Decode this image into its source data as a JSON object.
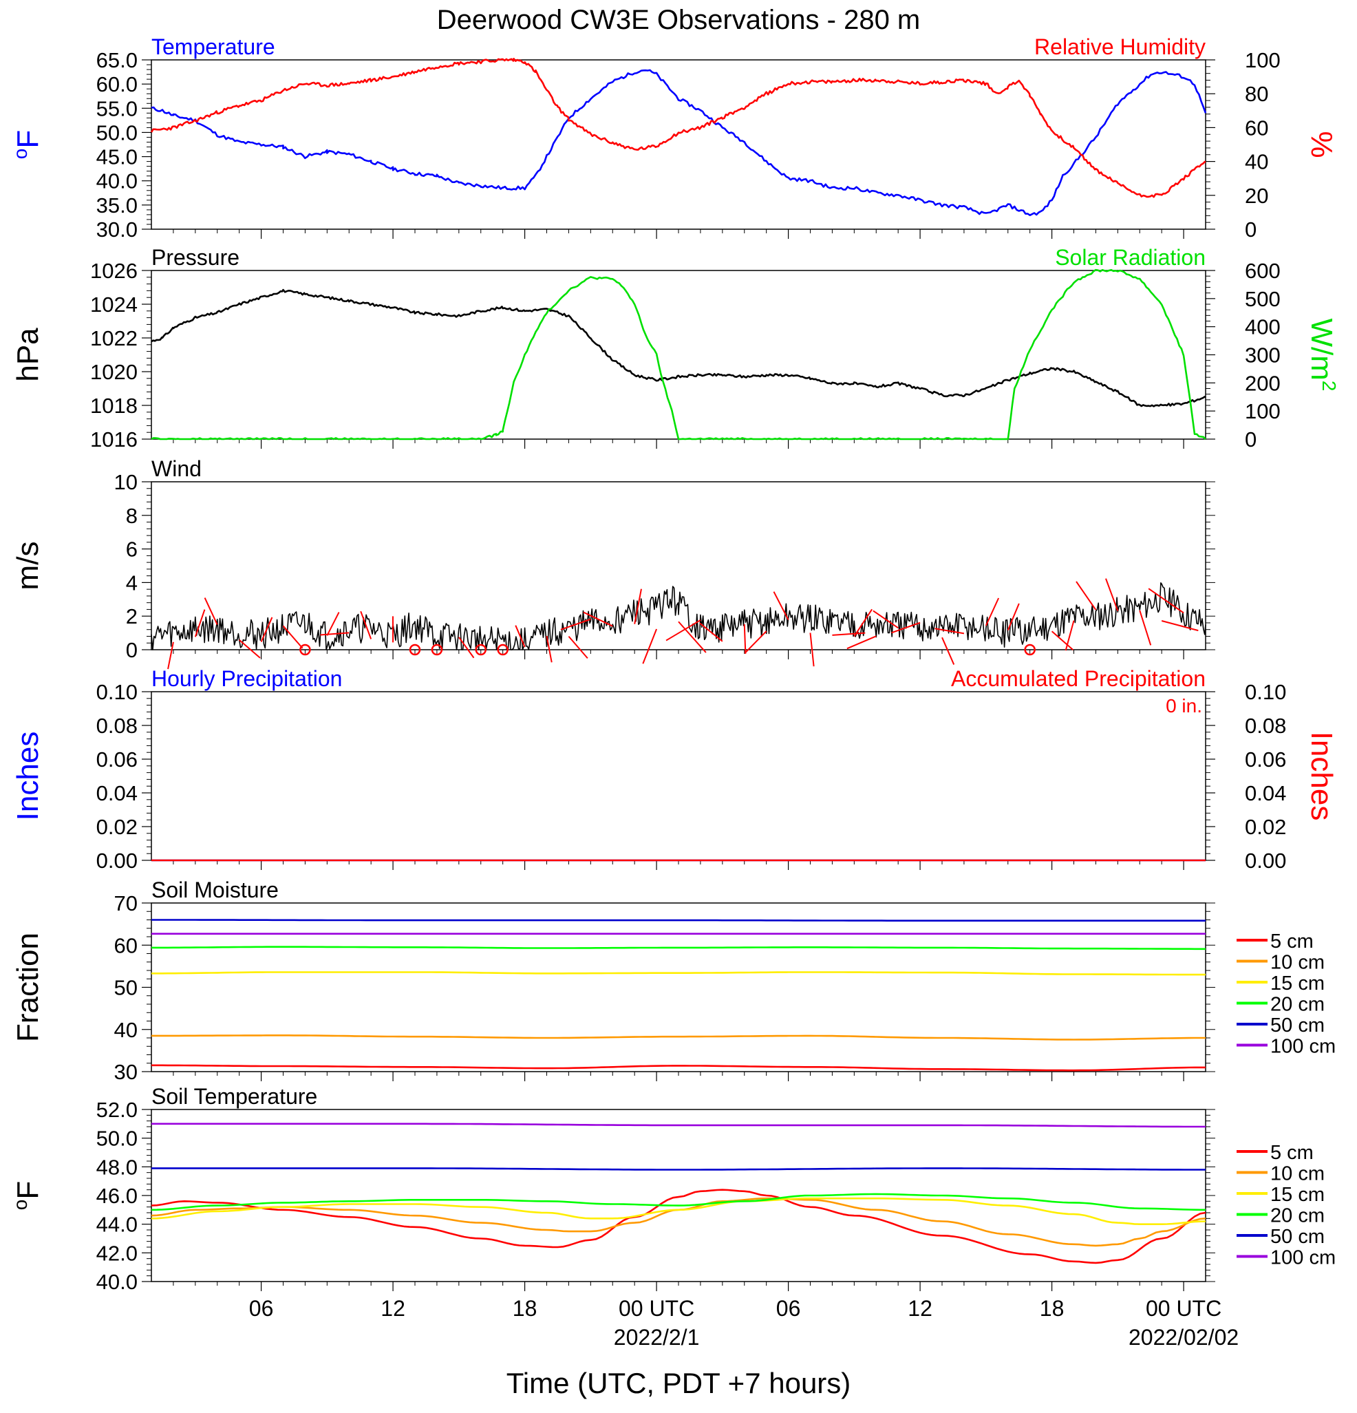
{
  "colors": {
    "blue": "#0000ff",
    "red": "#ff0000",
    "green": "#00e000",
    "black": "#000000",
    "orange": "#ff9900",
    "yellow": "#ffee00",
    "purple": "#9900dd",
    "soil_green": "#00ff00",
    "soil_blue": "#0000cc"
  },
  "chart_data": [
    {
      "type": "line",
      "title": "Deerwood CW3E Observations - 280 m",
      "panel": "Temperature / Relative Humidity",
      "left_label": "Temperature",
      "right_label": "Relative Humidity",
      "ylabel_left": "oF",
      "ylabel_right": "%",
      "ylim_left": [
        30,
        65
      ],
      "ylim_right": [
        0,
        100
      ],
      "yticks_left": [
        "30.0",
        "35.0",
        "40.0",
        "45.0",
        "50.0",
        "55.0",
        "60.0",
        "65.0"
      ],
      "yticks_right": [
        "0",
        "20",
        "40",
        "60",
        "80",
        "100"
      ],
      "x_range_hours": [
        0,
        48
      ],
      "series": [
        {
          "name": "Temperature",
          "axis": "left",
          "color": "blue",
          "x": [
            0,
            0.5,
            1,
            1.5,
            2,
            2.5,
            3,
            4,
            5,
            6,
            7,
            8,
            9,
            10,
            11,
            12,
            13,
            14,
            15,
            16,
            17,
            17.5,
            18,
            18.5,
            19,
            20,
            21,
            22,
            22.5,
            23,
            24,
            25,
            26,
            27,
            28,
            29,
            30,
            31,
            32,
            33,
            34,
            35,
            36,
            37,
            38,
            39,
            40,
            40.5,
            41,
            41.5,
            42,
            43,
            44,
            45,
            45.5,
            46,
            47,
            47.5,
            48
          ],
          "values": [
            55,
            54.5,
            53.5,
            53,
            52.5,
            51,
            49.5,
            48,
            47.5,
            47,
            45,
            46,
            45.5,
            44,
            42.5,
            41.5,
            41,
            39.5,
            39,
            38.5,
            38.5,
            41,
            45,
            49,
            53,
            57,
            60.5,
            62.5,
            63,
            62,
            57,
            54.5,
            51,
            48,
            44,
            40.5,
            40,
            38.5,
            38.5,
            37.5,
            37,
            36,
            35,
            34.5,
            33,
            35,
            33,
            33.5,
            36,
            41,
            43.5,
            49,
            56,
            60,
            62,
            62.5,
            61.5,
            60,
            54
          ]
        },
        {
          "name": "Relative Humidity",
          "axis": "right",
          "color": "red",
          "x": [
            0,
            1,
            2,
            3,
            4,
            5,
            6,
            7,
            8,
            9,
            10,
            11,
            12,
            13,
            14,
            15,
            16,
            16.5,
            17,
            17.5,
            18,
            18.5,
            19,
            20,
            21,
            22,
            23,
            24,
            25,
            26,
            27,
            28,
            29,
            30,
            31,
            32,
            33,
            34,
            35,
            36,
            37,
            38,
            38.5,
            39,
            39.5,
            40,
            40.5,
            41,
            42,
            43,
            44,
            45,
            46,
            47,
            48
          ],
          "values": [
            58,
            60,
            64,
            69,
            73,
            76,
            82,
            86,
            85,
            86,
            88,
            90,
            93,
            96,
            98,
            99,
            100,
            100,
            99,
            93,
            82,
            72,
            65,
            56,
            51,
            47,
            49,
            57,
            60,
            66,
            72,
            80,
            86,
            87,
            87,
            88,
            88,
            87,
            86,
            87,
            88,
            86,
            80,
            84,
            88,
            79,
            68,
            58,
            48,
            35,
            27,
            20,
            20,
            30,
            40
          ]
        }
      ]
    },
    {
      "type": "line",
      "panel": "Pressure / Solar Radiation",
      "left_label": "Pressure",
      "right_label": "Solar Radiation",
      "ylabel_left": "hPa",
      "ylabel_right": "W/m2",
      "ylim_left": [
        1016,
        1026
      ],
      "ylim_right": [
        0,
        600
      ],
      "yticks_left": [
        "1016",
        "1018",
        "1020",
        "1022",
        "1024",
        "1026"
      ],
      "yticks_right": [
        "0",
        "100",
        "200",
        "300",
        "400",
        "500",
        "600"
      ],
      "series": [
        {
          "name": "Pressure",
          "axis": "left",
          "color": "black",
          "x": [
            0,
            0.5,
            1,
            2,
            3,
            4,
            5,
            6,
            7,
            8,
            9,
            10,
            11,
            12,
            13,
            14,
            15,
            16,
            17,
            18,
            19,
            20,
            21,
            22,
            23,
            24,
            25,
            26,
            27,
            28,
            29,
            30,
            31,
            32,
            33,
            34,
            35,
            36,
            37,
            38,
            39,
            40,
            41,
            42,
            43,
            44,
            45,
            46,
            47,
            48
          ],
          "values": [
            1021.8,
            1022,
            1022.6,
            1023.2,
            1023.5,
            1024,
            1024.4,
            1024.8,
            1024.6,
            1024.4,
            1024.2,
            1024,
            1023.8,
            1023.5,
            1023.4,
            1023.3,
            1023.6,
            1023.8,
            1023.6,
            1023.7,
            1023.3,
            1022,
            1020.7,
            1019.8,
            1019.5,
            1019.7,
            1019.8,
            1019.8,
            1019.7,
            1019.8,
            1019.8,
            1019.6,
            1019.3,
            1019.3,
            1019.1,
            1019.3,
            1019.0,
            1018.6,
            1018.6,
            1019.0,
            1019.5,
            1019.9,
            1020.2,
            1020.0,
            1019.4,
            1018.8,
            1018.0,
            1018.0,
            1018.1,
            1018.5
          ]
        },
        {
          "name": "Solar Radiation",
          "axis": "right",
          "color": "green",
          "x": [
            0,
            15,
            15.7,
            16,
            16.5,
            17,
            17.5,
            18,
            19,
            20,
            21,
            21.5,
            22,
            22.5,
            23,
            23.3,
            23.7,
            24,
            25,
            26,
            38,
            39,
            39.3,
            40,
            41,
            42,
            43,
            44,
            45,
            46,
            47,
            47.5,
            48
          ],
          "values": [
            0,
            0,
            15,
            30,
            200,
            300,
            380,
            450,
            530,
            575,
            570,
            540,
            480,
            370,
            300,
            200,
            100,
            0,
            0,
            0,
            0,
            0,
            180,
            320,
            460,
            560,
            600,
            600,
            570,
            480,
            300,
            20,
            0
          ]
        }
      ]
    },
    {
      "type": "line",
      "panel": "Wind",
      "left_label": "Wind",
      "ylabel_left": "m/s",
      "ylim_left": [
        0,
        10
      ],
      "yticks_left": [
        "0",
        "2",
        "4",
        "6",
        "8",
        "10"
      ],
      "series": [
        {
          "name": "Wind",
          "axis": "left",
          "color": "black",
          "x": [
            0,
            1,
            2,
            3,
            4,
            5,
            6,
            7,
            8,
            9,
            10,
            11,
            12,
            13,
            14,
            15,
            16,
            17,
            18,
            19,
            20,
            21,
            22,
            23,
            23.5,
            24,
            25,
            26,
            27,
            28,
            29,
            30,
            31,
            32,
            33,
            34,
            35,
            36,
            37,
            38,
            39,
            40,
            41,
            42,
            43,
            44,
            45,
            46,
            47,
            48
          ],
          "values": [
            0.8,
            1.0,
            1.2,
            1.3,
            1.0,
            0.9,
            1.3,
            1.6,
            0.8,
            1.2,
            1.3,
            0.8,
            1.5,
            0.8,
            0.7,
            0.6,
            0.5,
            0.4,
            0.9,
            1.2,
            1.6,
            1.7,
            2.2,
            2.4,
            3.0,
            2.8,
            1.2,
            1.3,
            1.5,
            1.6,
            1.9,
            1.8,
            1.7,
            1.6,
            1.4,
            1.4,
            1.3,
            1.3,
            1.4,
            1.2,
            1.0,
            1.1,
            1.5,
            2.0,
            2.0,
            2.3,
            2.5,
            3.2,
            2.2,
            1.5
          ]
        }
      ]
    },
    {
      "type": "line",
      "panel": "Precipitation",
      "left_label": "Hourly Precipitation",
      "right_label": "Accumulated Precipitation",
      "accum_text": "0 in.",
      "ylabel_left": "Inches",
      "ylabel_right": "Inches",
      "ylim_left": [
        0,
        0.1
      ],
      "ylim_right": [
        0,
        0.1
      ],
      "yticks_left": [
        "0.00",
        "0.02",
        "0.04",
        "0.06",
        "0.08",
        "0.10"
      ],
      "yticks_right": [
        "0.00",
        "0.02",
        "0.04",
        "0.06",
        "0.08",
        "0.10"
      ],
      "series": [
        {
          "name": "Hourly Precipitation",
          "axis": "left",
          "color": "blue",
          "x": [
            0,
            48
          ],
          "values": [
            0,
            0
          ]
        },
        {
          "name": "Accumulated Precipitation",
          "axis": "right",
          "color": "red",
          "x": [
            0,
            48
          ],
          "values": [
            0,
            0
          ]
        }
      ]
    },
    {
      "type": "line",
      "panel": "Soil Moisture",
      "left_label": "Soil Moisture",
      "ylabel_left": "Fraction",
      "ylim_left": [
        30,
        70
      ],
      "yticks_left": [
        "30",
        "40",
        "50",
        "60",
        "70"
      ],
      "series": [
        {
          "name": "5 cm",
          "color": "red",
          "x": [
            0,
            6,
            12,
            18,
            24,
            30,
            36,
            42,
            48
          ],
          "values": [
            31.5,
            31.3,
            31.1,
            30.8,
            31.4,
            31.1,
            30.6,
            30.3,
            31.0
          ]
        },
        {
          "name": "10 cm",
          "color": "orange",
          "x": [
            0,
            6,
            12,
            18,
            24,
            30,
            36,
            42,
            48
          ],
          "values": [
            38.5,
            38.6,
            38.3,
            38.0,
            38.3,
            38.5,
            38.0,
            37.6,
            38.0
          ]
        },
        {
          "name": "15 cm",
          "color": "yellow",
          "x": [
            0,
            6,
            12,
            18,
            24,
            30,
            36,
            42,
            48
          ],
          "values": [
            53.3,
            53.6,
            53.6,
            53.3,
            53.4,
            53.6,
            53.5,
            53.1,
            53.0
          ]
        },
        {
          "name": "20 cm",
          "color": "soil_green",
          "x": [
            0,
            6,
            12,
            18,
            24,
            30,
            36,
            42,
            48
          ],
          "values": [
            59.4,
            59.6,
            59.5,
            59.3,
            59.4,
            59.5,
            59.4,
            59.2,
            59.1
          ]
        },
        {
          "name": "50 cm",
          "color": "soil_blue",
          "x": [
            0,
            12,
            24,
            36,
            48
          ],
          "values": [
            66.0,
            65.9,
            65.9,
            65.8,
            65.8
          ]
        },
        {
          "name": "100 cm",
          "color": "purple",
          "x": [
            0,
            12,
            24,
            36,
            48
          ],
          "values": [
            62.7,
            62.7,
            62.7,
            62.7,
            62.7
          ]
        }
      ]
    },
    {
      "type": "line",
      "panel": "Soil Temperature",
      "left_label": "Soil Temperature",
      "ylabel_left": "oF",
      "ylim_left": [
        40,
        52
      ],
      "yticks_left": [
        "40.0",
        "42.0",
        "44.0",
        "46.0",
        "48.0",
        "50.0",
        "52.0"
      ],
      "series": [
        {
          "name": "5 cm",
          "color": "red",
          "x": [
            0,
            1.5,
            3,
            6,
            9,
            12,
            15,
            17,
            18.5,
            20,
            22,
            24,
            25,
            26,
            27,
            28,
            30,
            32,
            36,
            40,
            42,
            43,
            44,
            46,
            48
          ],
          "values": [
            45.3,
            45.6,
            45.5,
            45.0,
            44.5,
            43.8,
            43.0,
            42.5,
            42.4,
            42.9,
            44.5,
            45.9,
            46.3,
            46.4,
            46.3,
            46.0,
            45.2,
            44.6,
            43.2,
            41.9,
            41.4,
            41.3,
            41.5,
            43.0,
            44.8
          ]
        },
        {
          "name": "10 cm",
          "color": "orange",
          "x": [
            0,
            2,
            4,
            6,
            9,
            12,
            15,
            18,
            19,
            20,
            22,
            24,
            26,
            28,
            30,
            33,
            36,
            39,
            42,
            43,
            44,
            45,
            46,
            48
          ],
          "values": [
            44.6,
            45.0,
            45.1,
            45.2,
            45.0,
            44.6,
            44.1,
            43.6,
            43.5,
            43.5,
            44.1,
            45.0,
            45.6,
            45.8,
            45.7,
            45.0,
            44.2,
            43.3,
            42.6,
            42.5,
            42.6,
            43.0,
            43.5,
            44.4
          ]
        },
        {
          "name": "15 cm",
          "color": "yellow",
          "x": [
            0,
            3,
            6,
            9,
            12,
            15,
            18,
            20,
            21,
            24,
            27,
            30,
            33,
            36,
            39,
            42,
            44,
            45,
            46,
            48
          ],
          "values": [
            44.4,
            44.9,
            45.2,
            45.4,
            45.4,
            45.2,
            44.8,
            44.4,
            44.4,
            45.0,
            45.6,
            45.8,
            45.8,
            45.7,
            45.3,
            44.7,
            44.1,
            44.0,
            44.0,
            44.2
          ]
        },
        {
          "name": "20 cm",
          "color": "soil_green",
          "x": [
            0,
            3,
            6,
            9,
            12,
            15,
            18,
            21,
            24,
            27,
            30,
            33,
            36,
            39,
            42,
            45,
            48
          ],
          "values": [
            45.0,
            45.3,
            45.5,
            45.6,
            45.7,
            45.7,
            45.6,
            45.4,
            45.3,
            45.6,
            46.0,
            46.1,
            46.0,
            45.8,
            45.5,
            45.1,
            45.0
          ]
        },
        {
          "name": "50 cm",
          "color": "soil_blue",
          "x": [
            0,
            12,
            24,
            36,
            48
          ],
          "values": [
            47.9,
            47.9,
            47.8,
            47.9,
            47.8
          ]
        },
        {
          "name": "100 cm",
          "color": "purple",
          "x": [
            0,
            12,
            24,
            36,
            48
          ],
          "values": [
            51.0,
            51.0,
            50.9,
            50.9,
            50.8
          ]
        }
      ]
    }
  ],
  "wind_barbs": {
    "color": "red",
    "calm_circles_hours": [
      7,
      12,
      13,
      15,
      16,
      40
    ]
  },
  "x_axis": {
    "ticks": [
      "06",
      "12",
      "18",
      "00 UTC",
      "06",
      "12",
      "18",
      "00 UTC"
    ],
    "tick_hours": [
      5,
      11,
      17,
      23,
      29,
      35,
      41,
      47
    ],
    "date_labels": [
      "2022/2/1",
      "2022/02/02"
    ],
    "date_label_hours": [
      23,
      47
    ],
    "xlabel": "Time (UTC, PDT +7 hours)"
  }
}
